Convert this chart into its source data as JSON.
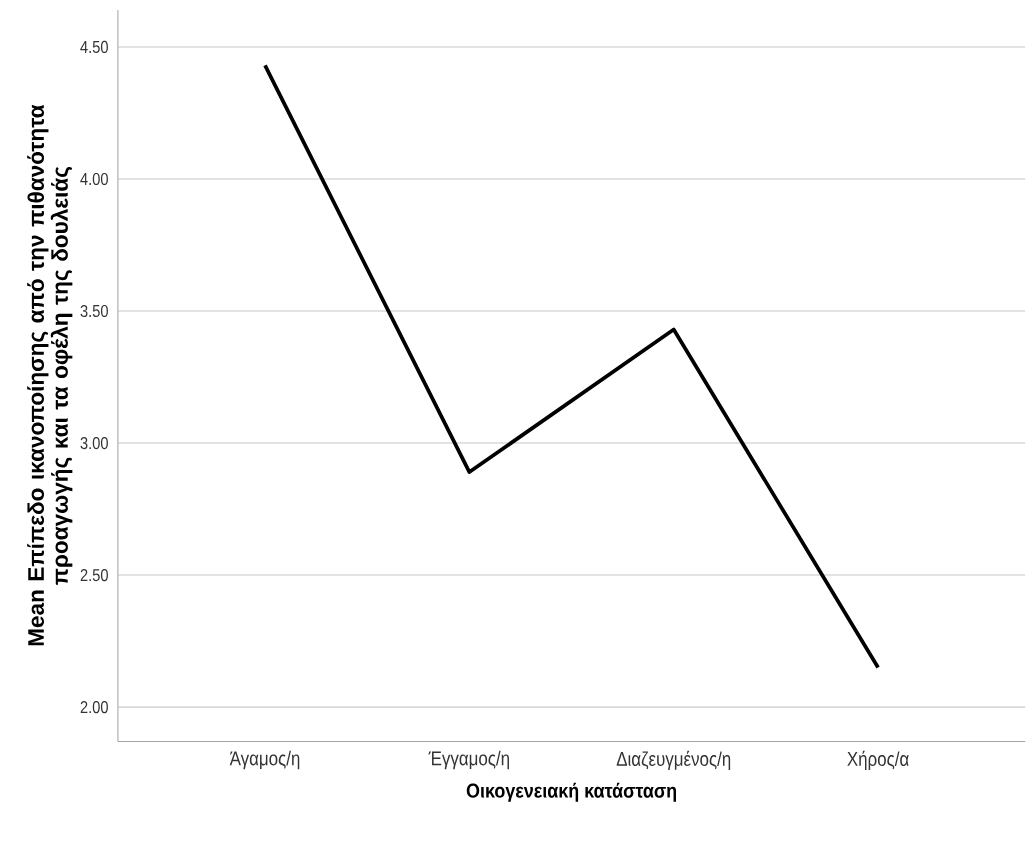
{
  "chart_data": {
    "type": "line",
    "xlabel": "Οικογενειακή κατάσταση",
    "ylabel": "Mean Επίπεδο ικανοποίησης από την πιθανότητα προαγωγής και τα οφέλη της δουλειάς",
    "categories": [
      "Άγαμος/η",
      "Έγγαμος/η",
      "Διαζευγμένος/η",
      "Χήρος/α"
    ],
    "series": [
      {
        "color": "#000000",
        "values": [
          4.43,
          2.89,
          3.43,
          2.15
        ]
      }
    ],
    "ylim": [
      1.87,
      4.64
    ],
    "yticks": [
      {
        "value": 2.0,
        "label": "2.00"
      },
      {
        "value": 2.5,
        "label": "2.50"
      },
      {
        "value": 3.0,
        "label": "3.00"
      },
      {
        "value": 3.5,
        "label": "3.50"
      },
      {
        "value": 4.0,
        "label": "4.00"
      },
      {
        "value": 4.5,
        "label": "4.50"
      }
    ],
    "grid": "y",
    "marker": "none",
    "line_style": "solid"
  }
}
